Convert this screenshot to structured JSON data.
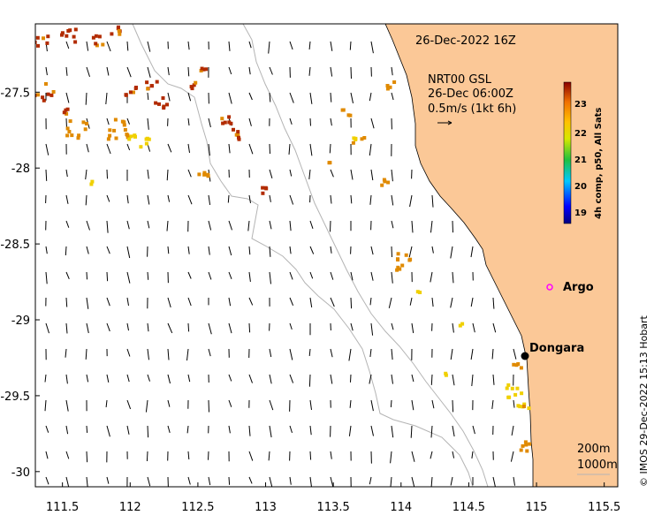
{
  "map": {
    "date_title": "26-Dec-2022 16Z",
    "current_source": "NRT00 GSL",
    "current_time": "26-Dec 06:00Z",
    "vector_scale": "0.5m/s (1kt 6h)",
    "depth_contours": [
      "200m",
      "1000m"
    ],
    "credit": "© IMOS 29-Dec-2022 15:13 Hobart",
    "colorbar_title": "4h comp, p50, All Sats",
    "colorbar_ticks": [
      "23",
      "22",
      "21",
      "20",
      "19"
    ],
    "places": [
      {
        "name": "Argo",
        "lon": 115.0,
        "lat": -28.83,
        "marker": "magenta-circle"
      },
      {
        "name": "Dongara",
        "lon": 114.93,
        "lat": -29.25,
        "marker": "black-dot"
      }
    ],
    "x_ticks": [
      "111.5",
      "112",
      "112.5",
      "113",
      "113.5",
      "114",
      "114.5",
      "115",
      "115.5"
    ],
    "y_ticks": [
      "-27.5",
      "-28",
      "-28.5",
      "-29",
      "-29.5",
      "-30"
    ],
    "x_tick_values": [
      111.5,
      112,
      112.5,
      113,
      113.5,
      114,
      114.5,
      115,
      115.5
    ],
    "y_tick_values": [
      -27.5,
      -28,
      -28.5,
      -29,
      -29.5,
      -30
    ],
    "lon_range": [
      111.3,
      115.6
    ],
    "lat_range": [
      -30.1,
      -27.05
    ],
    "colors": {
      "land": "#fbc897",
      "contour": "#b4b4b4",
      "arrow": "#000000",
      "argo": "#ff00ff",
      "sst_high": "#b22b00",
      "sst_mid": "#e08a00",
      "sst_low": "#f0d000"
    }
  }
}
